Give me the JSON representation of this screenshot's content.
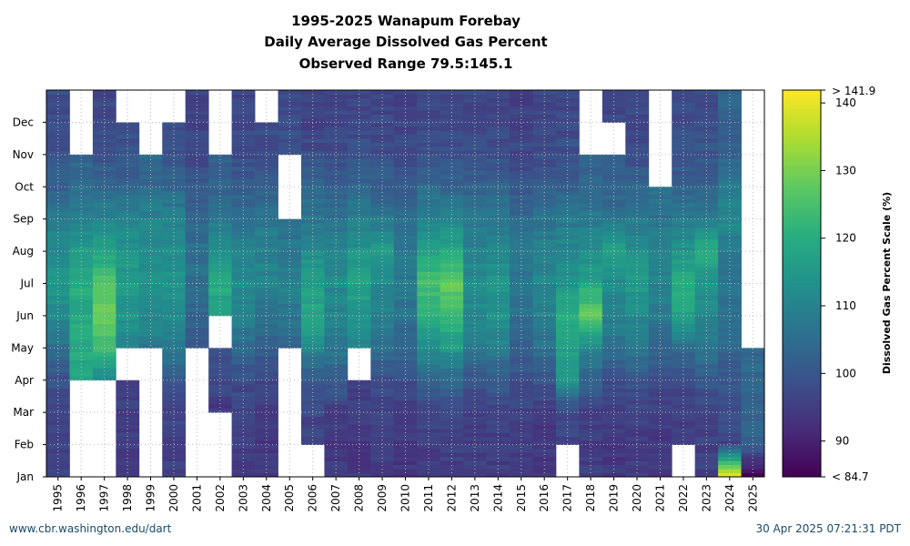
{
  "chart_data": {
    "type": "heatmap",
    "title_lines": [
      "1995-2025 Wanapum Forebay",
      "Daily Average Dissolved Gas Percent",
      "Observed Range 79.5:145.1"
    ],
    "x_categories": [
      "1995",
      "1996",
      "1997",
      "1998",
      "1999",
      "2000",
      "2001",
      "2002",
      "2003",
      "2004",
      "2005",
      "2006",
      "2007",
      "2008",
      "2009",
      "2010",
      "2011",
      "2012",
      "2013",
      "2014",
      "2015",
      "2016",
      "2017",
      "2018",
      "2019",
      "2020",
      "2021",
      "2022",
      "2023",
      "2024",
      "2025"
    ],
    "y_ticks": [
      "Jan",
      "Feb",
      "Mar",
      "Apr",
      "May",
      "Jun",
      "Jul",
      "Aug",
      "Sep",
      "Oct",
      "Nov",
      "Dec"
    ],
    "colorbar": {
      "label": "Dissolved Gas Percent Scale (%)",
      "min": 84.7,
      "max": 141.9,
      "ticks": [
        90,
        100,
        110,
        120,
        130,
        140
      ],
      "min_label": "< 84.7",
      "max_label": "> 141.9",
      "colormap": "viridis"
    },
    "grid": true,
    "monthly_values": [
      {
        "year": "1995",
        "values": [
          97,
          96,
          97,
          99,
          106,
          112,
          115,
          112,
          108,
          102,
          99,
          98
        ]
      },
      {
        "year": "1996",
        "values": [
          null,
          null,
          null,
          118,
          120,
          119,
          120,
          116,
          110,
          104,
          null,
          null
        ]
      },
      {
        "year": "1997",
        "values": [
          null,
          null,
          null,
          113,
          124,
          128,
          125,
          117,
          110,
          104,
          99,
          97
        ]
      },
      {
        "year": "1998",
        "values": [
          95,
          95,
          96,
          null,
          110,
          114,
          116,
          114,
          110,
          103,
          99,
          null
        ]
      },
      {
        "year": "1999",
        "values": [
          null,
          null,
          null,
          null,
          108,
          112,
          114,
          113,
          110,
          104,
          null,
          null
        ]
      },
      {
        "year": "2000",
        "values": [
          96,
          96,
          97,
          101,
          108,
          112,
          114,
          113,
          110,
          103,
          99,
          null
        ]
      },
      {
        "year": "2001",
        "values": [
          null,
          null,
          null,
          null,
          101,
          103,
          106,
          106,
          104,
          100,
          97,
          96
        ]
      },
      {
        "year": "2002",
        "values": [
          null,
          null,
          94,
          98,
          null,
          116,
          120,
          114,
          108,
          102,
          null,
          null
        ]
      },
      {
        "year": "2003",
        "values": [
          95,
          95,
          96,
          98,
          105,
          110,
          112,
          110,
          106,
          101,
          98,
          97
        ]
      },
      {
        "year": "2004",
        "values": [
          94,
          94,
          95,
          97,
          102,
          106,
          110,
          110,
          107,
          102,
          98,
          null
        ]
      },
      {
        "year": "2005",
        "values": [
          null,
          null,
          null,
          null,
          103,
          107,
          110,
          107,
          null,
          null,
          99,
          98
        ]
      },
      {
        "year": "2006",
        "values": [
          null,
          96,
          97,
          101,
          112,
          118,
          117,
          112,
          107,
          103,
          98,
          96
        ]
      },
      {
        "year": "2007",
        "values": [
          94,
          94,
          95,
          102,
          108,
          110,
          112,
          110,
          106,
          101,
          98,
          97
        ]
      },
      {
        "year": "2008",
        "values": [
          94,
          94,
          95,
          null,
          110,
          115,
          118,
          114,
          109,
          103,
          99,
          97
        ]
      },
      {
        "year": "2009",
        "values": [
          95,
          95,
          96,
          99,
          106,
          110,
          112,
          116,
          107,
          102,
          98,
          97
        ]
      },
      {
        "year": "2010",
        "values": [
          94,
          94,
          95,
          99,
          104,
          106,
          108,
          108,
          105,
          101,
          97,
          96
        ]
      },
      {
        "year": "2011",
        "values": [
          95,
          95,
          97,
          104,
          112,
          122,
          124,
          117,
          110,
          104,
          99,
          97
        ]
      },
      {
        "year": "2012",
        "values": [
          95,
          96,
          98,
          105,
          116,
          123,
          128,
          118,
          110,
          103,
          99,
          97
        ]
      },
      {
        "year": "2013",
        "values": [
          95,
          95,
          96,
          100,
          108,
          112,
          112,
          110,
          107,
          102,
          98,
          97
        ]
      },
      {
        "year": "2014",
        "values": [
          95,
          95,
          97,
          101,
          110,
          114,
          114,
          111,
          107,
          102,
          99,
          97
        ]
      },
      {
        "year": "2015",
        "values": [
          95,
          95,
          96,
          99,
          103,
          106,
          107,
          107,
          104,
          100,
          97,
          96
        ]
      },
      {
        "year": "2016",
        "values": [
          94,
          94,
          95,
          100,
          106,
          110,
          111,
          110,
          106,
          101,
          98,
          97
        ]
      },
      {
        "year": "2017",
        "values": [
          null,
          96,
          98,
          114,
          117,
          120,
          114,
          111,
          107,
          102,
          99,
          97
        ]
      },
      {
        "year": "2018",
        "values": [
          95,
          95,
          96,
          103,
          112,
          128,
          118,
          112,
          108,
          103,
          null,
          null
        ]
      },
      {
        "year": "2019",
        "values": [
          94,
          94,
          95,
          98,
          106,
          110,
          112,
          118,
          106,
          102,
          null,
          97
        ]
      },
      {
        "year": "2020",
        "values": [
          95,
          95,
          96,
          100,
          108,
          112,
          116,
          113,
          108,
          102,
          98,
          97
        ]
      },
      {
        "year": "2021",
        "values": [
          94,
          94,
          95,
          98,
          104,
          108,
          110,
          110,
          106,
          null,
          null,
          null
        ]
      },
      {
        "year": "2022",
        "values": [
          null,
          95,
          96,
          98,
          106,
          118,
          120,
          114,
          108,
          102,
          99,
          98
        ]
      },
      {
        "year": "2023",
        "values": [
          96,
          96,
          97,
          100,
          108,
          112,
          114,
          120,
          108,
          103,
          100,
          98
        ]
      },
      {
        "year": "2024",
        "values": [
          138,
          97,
          98,
          100,
          104,
          106,
          107,
          108,
          112,
          108,
          102,
          103
        ]
      },
      {
        "year": "2025",
        "values": [
          85,
          103,
          103,
          104,
          null,
          null,
          null,
          null,
          null,
          null,
          null,
          null
        ]
      }
    ]
  },
  "footer": {
    "left": "www.cbr.washington.edu/dart",
    "right": "30 Apr 2025 07:21:31 PDT"
  }
}
